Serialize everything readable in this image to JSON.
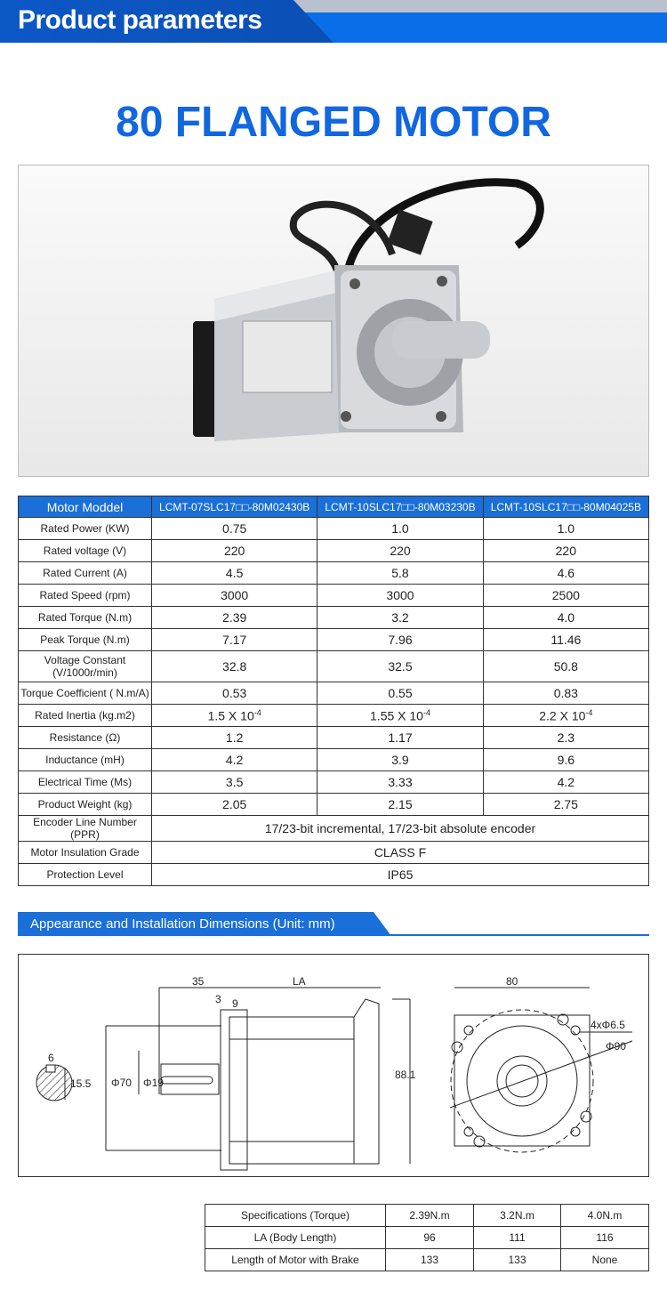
{
  "header": {
    "title": "Product parameters"
  },
  "product_title": "80 FLANGED MOTOR",
  "spec_table": {
    "header": [
      "Motor Moddel",
      "LCMT-07SLC17□□-80M02430B",
      "LCMT-10SLC17□□-80M03230B",
      "LCMT-10SLC17□□-80M04025B"
    ],
    "rows": [
      {
        "label": "Rated Power (KW)",
        "values": [
          "0.75",
          "1.0",
          "1.0"
        ]
      },
      {
        "label": "Rated voltage (V)",
        "values": [
          "220",
          "220",
          "220"
        ]
      },
      {
        "label": "Rated Current (A)",
        "values": [
          "4.5",
          "5.8",
          "4.6"
        ]
      },
      {
        "label": "Rated Speed (rpm)",
        "values": [
          "3000",
          "3000",
          "2500"
        ]
      },
      {
        "label": "Rated Torque (N.m)",
        "values": [
          "2.39",
          "3.2",
          "4.0"
        ]
      },
      {
        "label": "Peak Torque (N.m)",
        "values": [
          "7.17",
          "7.96",
          "11.46"
        ]
      },
      {
        "label": "Voltage Constant (V/1000r/min)",
        "values": [
          "32.8",
          "32.5",
          "50.8"
        ]
      },
      {
        "label": "Torque Coefficient ( N.m/A)",
        "values": [
          "0.53",
          "0.55",
          "0.83"
        ]
      },
      {
        "label": "Rated Inertia (kg.m2)",
        "values": [
          "1.5 X 10",
          "1.55 X 10",
          "2.2 X 10"
        ],
        "exp": "-4"
      },
      {
        "label": "Resistance (Ω)",
        "values": [
          "1.2",
          "1.17",
          "2.3"
        ]
      },
      {
        "label": "Inductance (mH)",
        "values": [
          "4.2",
          "3.9",
          "9.6"
        ]
      },
      {
        "label": "Electrical Time (Ms)",
        "values": [
          "3.5",
          "3.33",
          "4.2"
        ]
      },
      {
        "label": "Product Weight (kg)",
        "values": [
          "2.05",
          "2.15",
          "2.75"
        ]
      },
      {
        "label": "Encoder Line Number (PPR)",
        "value": "17/23-bit incremental, 17/23-bit absolute encoder"
      },
      {
        "label": "Motor Insulation Grade",
        "value": "CLASS F"
      },
      {
        "label": "Protection Level",
        "value": "IP65"
      }
    ]
  },
  "section": {
    "title": "Appearance and Installation Dimensions (Unit: mm)"
  },
  "drawing": {
    "labels": {
      "key": "6",
      "key_h": "15.5",
      "flange": "Φ70",
      "shaft": "Φ19",
      "shaft_len": "35",
      "body": "LA",
      "d3": "3",
      "d9": "9",
      "height": "88.1",
      "width": "80",
      "holes": "4xΦ6.5",
      "pcd": "Φ90"
    }
  },
  "dims_table": {
    "header": [
      "Specifications (Torque)",
      "2.39N.m",
      "3.2N.m",
      "4.0N.m"
    ],
    "rows": [
      {
        "label": "LA (Body Length)",
        "values": [
          "96",
          "111",
          "116"
        ]
      },
      {
        "label": "Length of Motor with Brake",
        "values": [
          "133",
          "133",
          "None"
        ]
      }
    ]
  },
  "colors": {
    "brand_blue": "#1a6fd8",
    "title_blue": "#1167e0"
  }
}
